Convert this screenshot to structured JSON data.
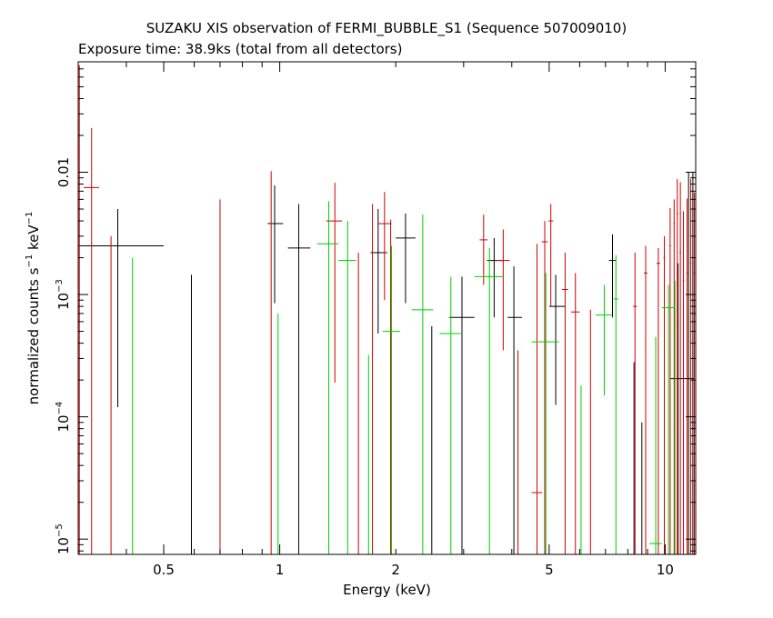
{
  "chart_data": {
    "type": "scatter",
    "title": "SUZAKU XIS observation of FERMI_BUBBLE_S1 (Sequence 507009010)",
    "subtitle": "Exposure time: 38.9ks (total from all detectors)",
    "xlabel": "Energy (keV)",
    "ylabel_main": "normalized counts s",
    "ylabel_sup1": "−1",
    "ylabel_mid": " keV",
    "ylabel_sup2": "−1",
    "x_scale": "log",
    "y_scale": "log",
    "xlim": [
      0.3,
      12.0
    ],
    "ylim": [
      7.5e-06,
      0.08
    ],
    "grid": false,
    "x_ticks": [
      {
        "value": 0.5,
        "label": "0.5"
      },
      {
        "value": 1,
        "label": "1"
      },
      {
        "value": 2,
        "label": "2"
      },
      {
        "value": 5,
        "label": "5"
      },
      {
        "value": 10,
        "label": "10"
      }
    ],
    "y_ticks": [
      {
        "value": 0.01,
        "label": "0.01",
        "exp": ""
      },
      {
        "value": 0.001,
        "label": "10",
        "exp": "−3"
      },
      {
        "value": 0.0001,
        "label": "10",
        "exp": "−4"
      },
      {
        "value": 1e-05,
        "label": "10",
        "exp": "−5"
      }
    ],
    "series": [
      {
        "color": "#000000",
        "points": [
          {
            "x": 0.38,
            "xlo": 0.3,
            "xhi": 0.5,
            "y": 0.0025,
            "ylo": 0.00012,
            "yhi": 0.005
          },
          {
            "x": 0.59,
            "xlo": 0.59,
            "xhi": 0.59,
            "y": null,
            "ylo": null,
            "yhi": 0.00145
          },
          {
            "x": 0.97,
            "xlo": 0.93,
            "xhi": 1.02,
            "y": 0.0038,
            "ylo": 0.00085,
            "yhi": 0.0078
          },
          {
            "x": 1.12,
            "xlo": 1.05,
            "xhi": 1.2,
            "y": 0.0024,
            "ylo": null,
            "yhi": 0.0055
          },
          {
            "x": 1.8,
            "xlo": 1.72,
            "xhi": 1.9,
            "y": 0.0022,
            "ylo": 0.00048,
            "yhi": 0.005
          },
          {
            "x": 2.12,
            "xlo": 2.0,
            "xhi": 2.25,
            "y": 0.0029,
            "ylo": 0.00085,
            "yhi": 0.0046
          },
          {
            "x": 2.48,
            "xlo": 2.48,
            "xhi": 2.48,
            "y": null,
            "ylo": null,
            "yhi": 0.00055
          },
          {
            "x": 2.97,
            "xlo": 2.75,
            "xhi": 3.2,
            "y": 0.00065,
            "ylo": null,
            "yhi": 0.0014
          },
          {
            "x": 3.6,
            "xlo": 3.45,
            "xhi": 3.8,
            "y": 0.0019,
            "ylo": 0.00065,
            "yhi": 0.0029
          },
          {
            "x": 4.05,
            "xlo": 3.9,
            "xhi": 4.25,
            "y": 0.00065,
            "ylo": null,
            "yhi": 0.0017
          },
          {
            "x": 5.2,
            "xlo": 5.0,
            "xhi": 5.5,
            "y": 0.0008,
            "ylo": 0.000125,
            "yhi": 0.00145
          },
          {
            "x": 7.3,
            "xlo": 7.15,
            "xhi": 7.45,
            "y": 0.0019,
            "ylo": 0.00065,
            "yhi": 0.0031
          },
          {
            "x": 8.3,
            "xlo": 8.3,
            "xhi": 8.3,
            "y": null,
            "ylo": null,
            "yhi": 0.00028
          },
          {
            "x": 8.7,
            "xlo": 8.7,
            "xhi": 8.7,
            "y": null,
            "ylo": null,
            "yhi": 9e-05
          },
          {
            "x": 10.8,
            "xlo": 10.3,
            "xhi": 11.9,
            "y": 0.000205,
            "ylo": null,
            "yhi": 0.0018
          },
          {
            "x": 11.5,
            "xlo": 11.5,
            "xhi": 11.5,
            "y": null,
            "ylo": null,
            "yhi": 0.01
          },
          {
            "x": 11.8,
            "xlo": 11.8,
            "xhi": 11.8,
            "y": null,
            "ylo": null,
            "yhi": 0.01
          }
        ]
      },
      {
        "color": "#cc0000",
        "points": [
          {
            "x": 0.302,
            "xlo": 0.302,
            "xhi": 0.302,
            "y": null,
            "ylo": null,
            "yhi": 0.075
          },
          {
            "x": 0.325,
            "xlo": 0.31,
            "xhi": 0.34,
            "y": 0.0075,
            "ylo": null,
            "yhi": 0.023
          },
          {
            "x": 0.365,
            "xlo": 0.365,
            "xhi": 0.365,
            "y": null,
            "ylo": null,
            "yhi": 0.003
          },
          {
            "x": 0.7,
            "xlo": 0.7,
            "xhi": 0.7,
            "y": null,
            "ylo": null,
            "yhi": 0.006
          },
          {
            "x": 0.95,
            "xlo": 0.95,
            "xhi": 0.95,
            "y": 0.0038,
            "ylo": null,
            "yhi": 0.0102
          },
          {
            "x": 1.39,
            "xlo": 1.32,
            "xhi": 1.45,
            "y": 0.004,
            "ylo": 0.00019,
            "yhi": 0.0082
          },
          {
            "x": 1.6,
            "xlo": 1.6,
            "xhi": 1.6,
            "y": null,
            "ylo": null,
            "yhi": 0.0022
          },
          {
            "x": 1.74,
            "xlo": 1.74,
            "xhi": 1.74,
            "y": null,
            "ylo": null,
            "yhi": 0.0055
          },
          {
            "x": 1.87,
            "xlo": 1.8,
            "xhi": 1.95,
            "y": 0.0038,
            "ylo": 0.0009,
            "yhi": 0.0069
          },
          {
            "x": 1.94,
            "xlo": 1.94,
            "xhi": 1.94,
            "y": null,
            "ylo": null,
            "yhi": 0.0041
          },
          {
            "x": 3.38,
            "xlo": 3.3,
            "xhi": 3.46,
            "y": 0.0028,
            "ylo": 0.0012,
            "yhi": 0.0045
          },
          {
            "x": 3.8,
            "xlo": 3.65,
            "xhi": 3.95,
            "y": 0.0019,
            "ylo": 0.00035,
            "yhi": 0.0034
          },
          {
            "x": 4.15,
            "xlo": 4.15,
            "xhi": 4.15,
            "y": null,
            "ylo": null,
            "yhi": 0.00035
          },
          {
            "x": 4.65,
            "xlo": 4.5,
            "xhi": 4.8,
            "y": 2.4e-05,
            "ylo": null,
            "yhi": 0.0026
          },
          {
            "x": 4.87,
            "xlo": 4.78,
            "xhi": 4.96,
            "y": 0.0027,
            "ylo": null,
            "yhi": 0.004
          },
          {
            "x": 5.05,
            "xlo": 4.98,
            "xhi": 5.12,
            "y": 0.004,
            "ylo": 0.0008,
            "yhi": 0.0055
          },
          {
            "x": 5.5,
            "xlo": 5.4,
            "xhi": 5.6,
            "y": 0.0011,
            "ylo": null,
            "yhi": 0.0022
          },
          {
            "x": 5.85,
            "xlo": 5.7,
            "xhi": 6.0,
            "y": 0.00072,
            "ylo": null,
            "yhi": 0.0015
          },
          {
            "x": 6.4,
            "xlo": 6.4,
            "xhi": 6.4,
            "y": null,
            "ylo": null,
            "yhi": 0.00075
          },
          {
            "x": 8.35,
            "xlo": 8.25,
            "xhi": 8.45,
            "y": 0.0008,
            "ylo": null,
            "yhi": 0.0022
          },
          {
            "x": 8.9,
            "xlo": 8.8,
            "xhi": 9.0,
            "y": 0.0015,
            "ylo": null,
            "yhi": 0.0025
          },
          {
            "x": 9.6,
            "xlo": 9.5,
            "xhi": 9.7,
            "y": 0.0018,
            "ylo": null,
            "yhi": 0.0024
          },
          {
            "x": 9.95,
            "xlo": 9.9,
            "xhi": 10.0,
            "y": 0.002,
            "ylo": null,
            "yhi": 0.003
          },
          {
            "x": 10.3,
            "xlo": 10.25,
            "xhi": 10.35,
            "y": 0.0025,
            "ylo": null,
            "yhi": 0.0051
          },
          {
            "x": 10.55,
            "xlo": 10.5,
            "xhi": 10.6,
            "y": 0.0038,
            "ylo": null,
            "yhi": 0.006
          },
          {
            "x": 10.75,
            "xlo": 10.7,
            "xhi": 10.8,
            "y": 0.0046,
            "ylo": null,
            "yhi": 0.0088
          },
          {
            "x": 10.95,
            "xlo": 10.9,
            "xhi": 11.0,
            "y": 0.0022,
            "ylo": null,
            "yhi": 0.0083
          },
          {
            "x": 11.15,
            "xlo": 11.1,
            "xhi": 11.2,
            "y": 0.0013,
            "ylo": null,
            "yhi": 0.0048
          },
          {
            "x": 11.4,
            "xlo": 11.35,
            "xhi": 11.45,
            "y": 0.0015,
            "ylo": null,
            "yhi": 0.0061
          },
          {
            "x": 11.65,
            "xlo": 11.6,
            "xhi": 11.7,
            "y": 0.0018,
            "ylo": null,
            "yhi": 0.0088
          },
          {
            "x": 11.9,
            "xlo": 11.85,
            "xhi": 11.95,
            "y": 0.0015,
            "ylo": null,
            "yhi": 0.0068
          }
        ]
      },
      {
        "color": "#00cc00",
        "points": [
          {
            "x": 0.415,
            "xlo": 0.415,
            "xhi": 0.415,
            "y": null,
            "ylo": null,
            "yhi": 0.002
          },
          {
            "x": 0.99,
            "xlo": 0.99,
            "xhi": 0.99,
            "y": null,
            "ylo": null,
            "yhi": 0.0007
          },
          {
            "x": 1.34,
            "xlo": 1.25,
            "xhi": 1.42,
            "y": 0.0026,
            "ylo": null,
            "yhi": 0.0058
          },
          {
            "x": 1.5,
            "xlo": 1.42,
            "xhi": 1.58,
            "y": 0.0019,
            "ylo": null,
            "yhi": 0.004
          },
          {
            "x": 1.7,
            "xlo": 1.7,
            "xhi": 1.7,
            "y": null,
            "ylo": null,
            "yhi": 0.00032
          },
          {
            "x": 1.95,
            "xlo": 1.85,
            "xhi": 2.05,
            "y": 0.0005,
            "ylo": null,
            "yhi": 0.0025
          },
          {
            "x": 2.35,
            "xlo": 2.2,
            "xhi": 2.5,
            "y": 0.00075,
            "ylo": null,
            "yhi": 0.0045
          },
          {
            "x": 2.78,
            "xlo": 2.6,
            "xhi": 2.95,
            "y": 0.00048,
            "ylo": null,
            "yhi": 0.0014
          },
          {
            "x": 3.5,
            "xlo": 3.2,
            "xhi": 3.8,
            "y": 0.0014,
            "ylo": null,
            "yhi": 0.0024
          },
          {
            "x": 4.9,
            "xlo": 4.5,
            "xhi": 5.3,
            "y": 0.00041,
            "ylo": null,
            "yhi": 0.0015
          },
          {
            "x": 6.05,
            "xlo": 6.05,
            "xhi": 6.05,
            "y": null,
            "ylo": null,
            "yhi": 0.00018
          },
          {
            "x": 6.95,
            "xlo": 6.6,
            "xhi": 7.3,
            "y": 0.00068,
            "ylo": 0.00015,
            "yhi": 0.0012
          },
          {
            "x": 7.45,
            "xlo": 7.35,
            "xhi": 7.55,
            "y": 0.00092,
            "ylo": null,
            "yhi": 0.0021
          },
          {
            "x": 9.45,
            "xlo": 9.1,
            "xhi": 9.8,
            "y": 9.2e-06,
            "ylo": null,
            "yhi": 0.00045
          },
          {
            "x": 10.2,
            "xlo": 9.8,
            "xhi": 10.6,
            "y": 0.00078,
            "ylo": null,
            "yhi": 0.0012
          },
          {
            "x": 10.6,
            "xlo": 10.55,
            "xhi": 10.65,
            "y": 0.0006,
            "ylo": null,
            "yhi": 0.0013
          }
        ]
      }
    ]
  }
}
